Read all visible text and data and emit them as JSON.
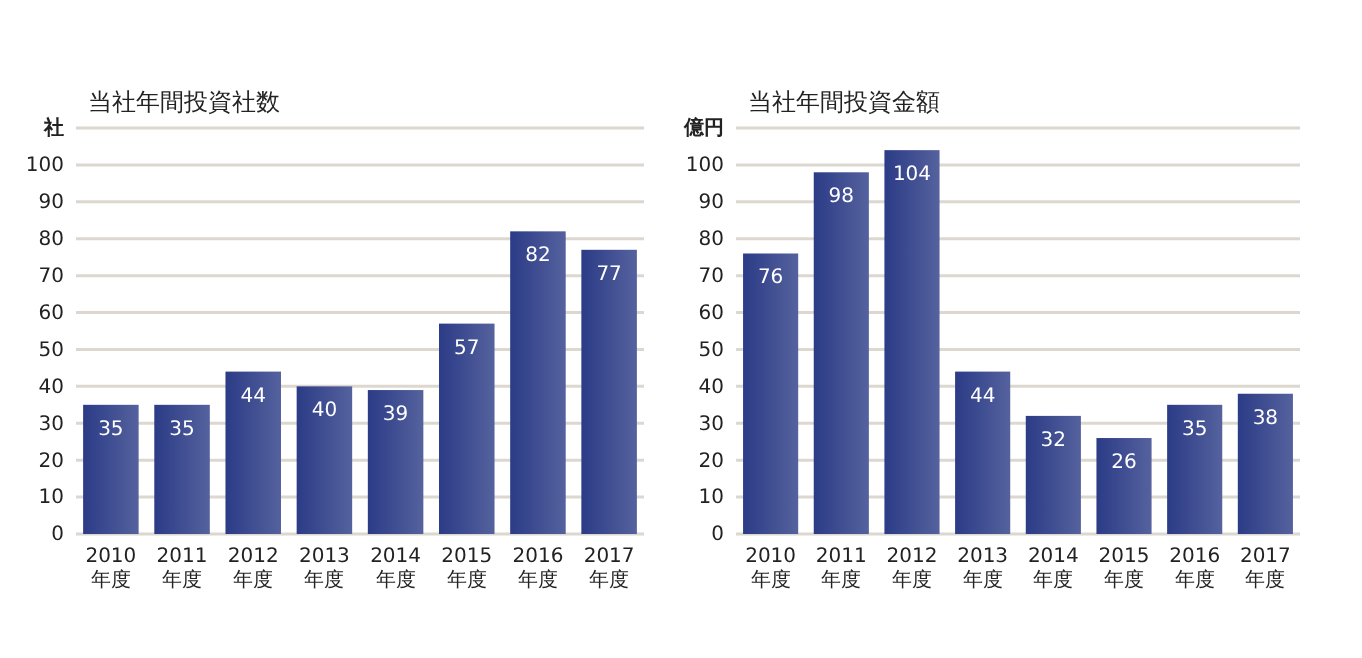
{
  "chart_data": [
    {
      "type": "bar",
      "title": "当社年間投資社数",
      "ylabel": "社",
      "categories": [
        "2010\n年度",
        "2011\n年度",
        "2012\n年度",
        "2013\n年度",
        "2014\n年度",
        "2015\n年度",
        "2016\n年度",
        "2017\n年度"
      ],
      "values": [
        35,
        35,
        44,
        40,
        39,
        57,
        82,
        77
      ],
      "color": "#2b3b86",
      "ylim": [
        0,
        110
      ],
      "yticks": [
        0,
        10,
        20,
        30,
        40,
        50,
        60,
        70,
        80,
        90,
        100,
        {
          "value": 110,
          "label": null
        }
      ],
      "grid": "y",
      "data_labels": true
    },
    {
      "type": "bar",
      "title": "当社年間投資金額",
      "ylabel": "億円",
      "categories": [
        "2010\n年度",
        "2011\n年度",
        "2012\n年度",
        "2013\n年度",
        "2014\n年度",
        "2015\n年度",
        "2016\n年度",
        "2017\n年度"
      ],
      "values": [
        76,
        98,
        104,
        44,
        32,
        26,
        35,
        38
      ],
      "color": "#2b3b86",
      "ylim": [
        0,
        110
      ],
      "yticks": [
        0,
        10,
        20,
        30,
        40,
        50,
        60,
        70,
        80,
        90,
        100,
        {
          "value": 110,
          "label": null
        }
      ],
      "grid": "y",
      "data_labels": true
    }
  ]
}
